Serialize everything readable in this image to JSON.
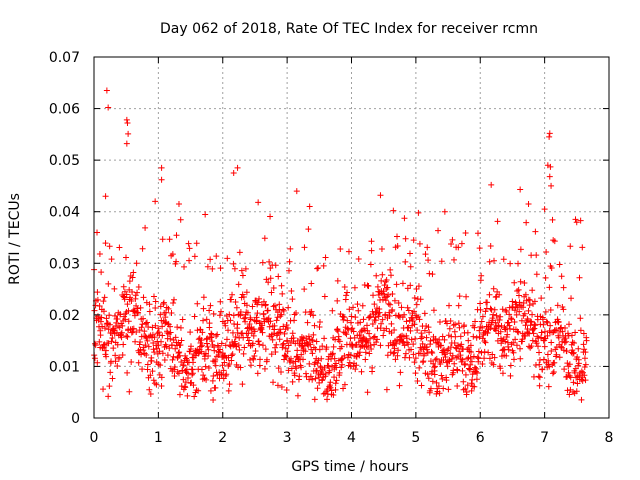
{
  "chart_data": {
    "type": "scatter",
    "title": "Day 062 of 2018, Rate Of TEC Index for receiver rcmn",
    "xlabel": "GPS time / hours",
    "ylabel": "ROTI / TECUs",
    "xlim": [
      0,
      8
    ],
    "ylim": [
      0,
      0.07
    ],
    "x_ticks": [
      "0",
      "1",
      "2",
      "3",
      "4",
      "5",
      "6",
      "7",
      "8"
    ],
    "y_ticks": [
      "0",
      "0.01",
      "0.02",
      "0.03",
      "0.04",
      "0.05",
      "0.06",
      "0.07"
    ],
    "grid": true,
    "marker": "+",
    "color": "#ff0000",
    "x_range_data": [
      0.0,
      7.65
    ],
    "typical_range": [
      0.005,
      0.03
    ],
    "outliers": [
      {
        "x": 0.2,
        "y": 0.0635
      },
      {
        "x": 0.22,
        "y": 0.0602
      },
      {
        "x": 0.51,
        "y": 0.0578
      },
      {
        "x": 0.52,
        "y": 0.0572
      },
      {
        "x": 0.53,
        "y": 0.0551
      },
      {
        "x": 0.51,
        "y": 0.0532
      },
      {
        "x": 1.05,
        "y": 0.0485
      },
      {
        "x": 1.05,
        "y": 0.0462
      },
      {
        "x": 2.17,
        "y": 0.0475
      },
      {
        "x": 2.23,
        "y": 0.0485
      },
      {
        "x": 7.07,
        "y": 0.0545
      },
      {
        "x": 7.08,
        "y": 0.0552
      },
      {
        "x": 7.05,
        "y": 0.049
      },
      {
        "x": 7.09,
        "y": 0.0487
      },
      {
        "x": 7.08,
        "y": 0.0468
      },
      {
        "x": 7.1,
        "y": 0.045
      },
      {
        "x": 6.17,
        "y": 0.0452
      },
      {
        "x": 6.62,
        "y": 0.0443
      },
      {
        "x": 4.45,
        "y": 0.0432
      },
      {
        "x": 3.15,
        "y": 0.044
      },
      {
        "x": 0.18,
        "y": 0.043
      },
      {
        "x": 0.95,
        "y": 0.042
      },
      {
        "x": 1.32,
        "y": 0.0415
      },
      {
        "x": 2.55,
        "y": 0.0418
      },
      {
        "x": 3.35,
        "y": 0.041
      },
      {
        "x": 4.65,
        "y": 0.0402
      },
      {
        "x": 5.45,
        "y": 0.04
      },
      {
        "x": 6.75,
        "y": 0.0415
      },
      {
        "x": 7.0,
        "y": 0.0405
      },
      {
        "x": 4.25,
        "y": 0.005
      },
      {
        "x": 1.85,
        "y": 0.0035
      },
      {
        "x": 0.22,
        "y": 0.0042
      },
      {
        "x": 4.55,
        "y": 0.0055
      }
    ]
  }
}
